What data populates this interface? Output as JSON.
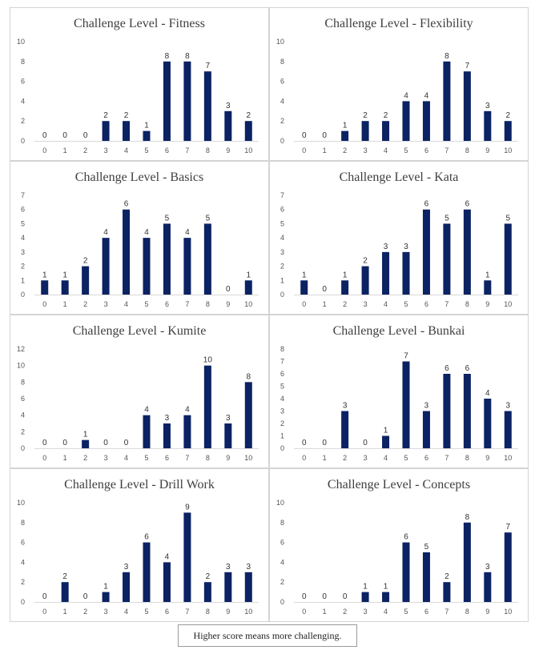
{
  "footnote": "Higher score means more challenging.",
  "bar_color": "#0b2263",
  "chart_data": [
    {
      "type": "bar",
      "title": "Challenge Level - Fitness",
      "categories": [
        "0",
        "1",
        "2",
        "3",
        "4",
        "5",
        "6",
        "7",
        "8",
        "9",
        "10"
      ],
      "values": [
        0,
        0,
        0,
        2,
        2,
        1,
        8,
        8,
        7,
        3,
        2
      ],
      "ylim": [
        0,
        10
      ],
      "yticks": [
        0,
        2,
        4,
        6,
        8,
        10
      ],
      "xlabel": "",
      "ylabel": "",
      "grid": false
    },
    {
      "type": "bar",
      "title": "Challenge Level - Flexibility",
      "categories": [
        "0",
        "1",
        "2",
        "3",
        "4",
        "5",
        "6",
        "7",
        "8",
        "9",
        "10"
      ],
      "values": [
        0,
        0,
        1,
        2,
        2,
        4,
        4,
        8,
        7,
        3,
        2
      ],
      "ylim": [
        0,
        10
      ],
      "yticks": [
        0,
        2,
        4,
        6,
        8,
        10
      ],
      "xlabel": "",
      "ylabel": "",
      "grid": false
    },
    {
      "type": "bar",
      "title": "Challenge Level - Basics",
      "categories": [
        "0",
        "1",
        "2",
        "3",
        "4",
        "5",
        "6",
        "7",
        "8",
        "9",
        "10"
      ],
      "values": [
        1,
        1,
        2,
        4,
        6,
        4,
        5,
        4,
        5,
        0,
        1
      ],
      "ylim": [
        0,
        7
      ],
      "yticks": [
        0,
        1,
        2,
        3,
        4,
        5,
        6,
        7
      ],
      "xlabel": "",
      "ylabel": "",
      "grid": false
    },
    {
      "type": "bar",
      "title": "Challenge Level - Kata",
      "categories": [
        "0",
        "1",
        "2",
        "3",
        "4",
        "5",
        "6",
        "7",
        "8",
        "9",
        "10"
      ],
      "values": [
        1,
        0,
        1,
        2,
        3,
        3,
        6,
        5,
        6,
        1,
        5
      ],
      "ylim": [
        0,
        7
      ],
      "yticks": [
        0,
        1,
        2,
        3,
        4,
        5,
        6,
        7
      ],
      "xlabel": "",
      "ylabel": "",
      "grid": false
    },
    {
      "type": "bar",
      "title": "Challenge Level - Kumite",
      "categories": [
        "0",
        "1",
        "2",
        "3",
        "4",
        "5",
        "6",
        "7",
        "8",
        "9",
        "10"
      ],
      "values": [
        0,
        0,
        1,
        0,
        0,
        4,
        3,
        4,
        10,
        3,
        8
      ],
      "ylim": [
        0,
        12
      ],
      "yticks": [
        0,
        2,
        4,
        6,
        8,
        10,
        12
      ],
      "xlabel": "",
      "ylabel": "",
      "grid": false
    },
    {
      "type": "bar",
      "title": "Challenge Level - Bunkai",
      "categories": [
        "0",
        "1",
        "2",
        "3",
        "4",
        "5",
        "6",
        "7",
        "8",
        "9",
        "10"
      ],
      "values": [
        0,
        0,
        3,
        0,
        1,
        7,
        3,
        6,
        6,
        4,
        3
      ],
      "ylim": [
        0,
        8
      ],
      "yticks": [
        0,
        1,
        2,
        3,
        4,
        5,
        6,
        7,
        8
      ],
      "xlabel": "",
      "ylabel": "",
      "grid": false
    },
    {
      "type": "bar",
      "title": "Challenge Level - Drill Work",
      "categories": [
        "0",
        "1",
        "2",
        "3",
        "4",
        "5",
        "6",
        "7",
        "8",
        "9",
        "10"
      ],
      "values": [
        0,
        2,
        0,
        1,
        3,
        6,
        4,
        9,
        2,
        3,
        3
      ],
      "ylim": [
        0,
        10
      ],
      "yticks": [
        0,
        2,
        4,
        6,
        8,
        10
      ],
      "xlabel": "",
      "ylabel": "",
      "grid": false
    },
    {
      "type": "bar",
      "title": "Challenge Level - Concepts",
      "categories": [
        "0",
        "1",
        "2",
        "3",
        "4",
        "5",
        "6",
        "7",
        "8",
        "9",
        "10"
      ],
      "values": [
        0,
        0,
        0,
        1,
        1,
        6,
        5,
        2,
        8,
        3,
        7
      ],
      "ylim": [
        0,
        10
      ],
      "yticks": [
        0,
        2,
        4,
        6,
        8,
        10
      ],
      "xlabel": "",
      "ylabel": "",
      "grid": false
    }
  ]
}
